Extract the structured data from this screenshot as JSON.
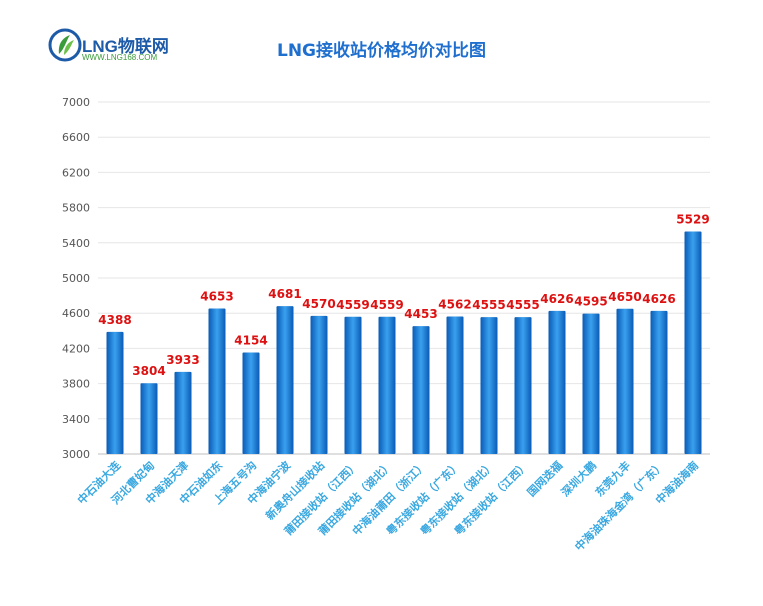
{
  "brand": {
    "logo_text": "LNG物联网",
    "url": "WWW.LNG168.COM"
  },
  "colors": {
    "bar_dark": "#0a5bb5",
    "bar_light": "#3aa0ee",
    "value_label": "#dd1111",
    "axis_label": "#3aa8e0",
    "title": "#1f6fcf",
    "grid": "#e6e6e6"
  },
  "chart_data": {
    "type": "bar",
    "title": "LNG接收站价格均价对比图",
    "xlabel": "",
    "ylabel": "",
    "ylim": [
      3000,
      7000
    ],
    "yticks": [
      3000,
      3400,
      3800,
      4200,
      4600,
      5000,
      5400,
      5800,
      6200,
      6600,
      7000
    ],
    "grid": true,
    "categories": [
      "中石油大连",
      "河北曹妃甸",
      "中海油天津",
      "中石油如东",
      "上海五号沟",
      "中海油宁波",
      "新奥舟山接收站",
      "莆田接收站（江西）",
      "莆田接收站（湖北）",
      "中海油莆田（浙江）",
      "粤东接收站（广东）",
      "粤东接收站（湖北）",
      "粤东接收站（江西）",
      "国网迭福",
      "深圳大鹏",
      "东莞九丰",
      "中海油珠海金湾（广东）",
      "中海油海南"
    ],
    "values": [
      4388,
      3804,
      3933,
      4653,
      4154,
      4681,
      4570,
      4559,
      4559,
      4453,
      4562,
      4555,
      4555,
      4626,
      4595,
      4650,
      4626,
      5529
    ]
  }
}
